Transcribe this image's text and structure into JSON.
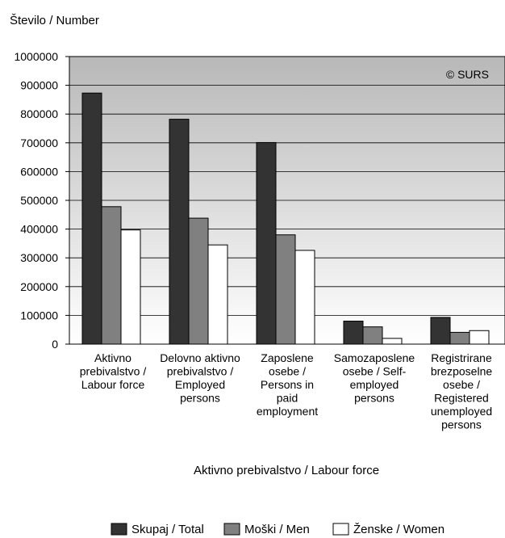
{
  "chart_data": {
    "type": "bar",
    "ylabel": "Število / Number",
    "xlabel": "Aktivno prebivalstvo / Labour force",
    "watermark": "© SURS",
    "ylim": [
      0,
      1000000
    ],
    "yticks": [
      "0",
      "100000",
      "200000",
      "300000",
      "400000",
      "500000",
      "600000",
      "700000",
      "800000",
      "900000",
      "1000000"
    ],
    "grid": true,
    "legend_position": "bottom",
    "categories": [
      [
        "Aktivno",
        "prebivalstvo /",
        "Labour force"
      ],
      [
        "Delovno aktivno",
        "prebivalstvo /",
        "Employed",
        "persons"
      ],
      [
        "Zaposlene",
        "osebe /",
        "Persons in",
        "paid",
        "employment"
      ],
      [
        "Samozaposlene",
        "osebe / Self-",
        "employed",
        "persons"
      ],
      [
        "Registrirane",
        "brezposelne",
        "osebe /",
        "Registered",
        "unemployed",
        "persons"
      ]
    ],
    "series": [
      {
        "name": "Skupaj / Total",
        "color": "#333333",
        "values": [
          873000,
          782000,
          701000,
          80000,
          93000
        ]
      },
      {
        "name": "Moški / Men",
        "color": "#808080",
        "values": [
          478000,
          438000,
          380000,
          60000,
          41000
        ]
      },
      {
        "name": "Ženske / Women",
        "color": "#ffffff",
        "values": [
          397000,
          345000,
          326000,
          20000,
          47000
        ]
      }
    ]
  }
}
